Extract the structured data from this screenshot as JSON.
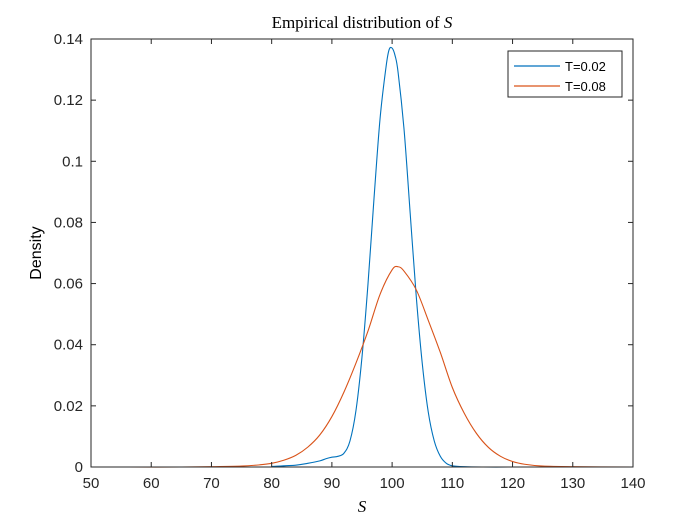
{
  "chart_data": {
    "type": "line",
    "title_prefix": "Empirical distribution of ",
    "title_symbol": "S",
    "xlabel": "S",
    "ylabel": "Density",
    "xlim": [
      50,
      140
    ],
    "ylim": [
      0,
      0.14
    ],
    "xticks": [
      50,
      60,
      70,
      80,
      90,
      100,
      110,
      120,
      130,
      140
    ],
    "xtick_labels": [
      "50",
      "60",
      "70",
      "80",
      "90",
      "100",
      "110",
      "120",
      "130",
      "140"
    ],
    "yticks": [
      0,
      0.02,
      0.04,
      0.06,
      0.08,
      0.1,
      0.12,
      0.14
    ],
    "ytick_labels": [
      "0",
      "0.02",
      "0.04",
      "0.06",
      "0.08",
      "0.1",
      "0.12",
      "0.14"
    ],
    "legend_position": "top-right",
    "series": [
      {
        "name": "T=0.02",
        "color": "#0072BD",
        "x": [
          80,
          84,
          86,
          88,
          89,
          90,
          91,
          92,
          93,
          94,
          95,
          96,
          97,
          98,
          99,
          99.5,
          100,
          100.5,
          101,
          102,
          103,
          104,
          105,
          106,
          107,
          108,
          109,
          110,
          112,
          115,
          120
        ],
        "y": [
          0.0002,
          0.0006,
          0.0012,
          0.002,
          0.0027,
          0.0032,
          0.0035,
          0.0045,
          0.0085,
          0.0185,
          0.036,
          0.06,
          0.088,
          0.114,
          0.131,
          0.1365,
          0.137,
          0.1345,
          0.129,
          0.11,
          0.083,
          0.056,
          0.034,
          0.018,
          0.0085,
          0.0035,
          0.0012,
          0.0004,
          0.0001,
          0.0,
          0.0
        ]
      },
      {
        "name": "T=0.08",
        "color": "#D95319",
        "x": [
          56,
          65,
          70,
          75,
          78,
          80,
          82,
          84,
          86,
          88,
          90,
          92,
          94,
          96,
          98,
          100,
          101,
          102,
          104,
          106,
          108,
          110,
          112,
          114,
          116,
          118,
          120,
          122,
          125,
          130,
          140
        ],
        "y": [
          0.0,
          0.0,
          0.0001,
          0.0003,
          0.0007,
          0.0012,
          0.0022,
          0.0038,
          0.0065,
          0.0105,
          0.0165,
          0.0245,
          0.034,
          0.0445,
          0.0565,
          0.0645,
          0.0655,
          0.064,
          0.058,
          0.048,
          0.0375,
          0.026,
          0.0175,
          0.011,
          0.0064,
          0.0035,
          0.0018,
          0.0009,
          0.0003,
          0.0001,
          0.0
        ]
      }
    ]
  }
}
